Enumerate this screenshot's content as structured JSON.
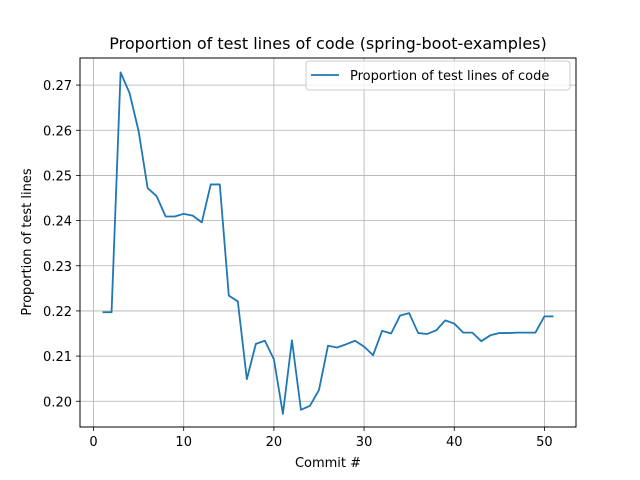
{
  "chart_data": {
    "type": "line",
    "title": "Proportion of test lines of code (spring-boot-examples)",
    "xlabel": "Commit #",
    "ylabel": "Proportion of test lines",
    "xlim": [
      -1.5,
      53.5
    ],
    "ylim": [
      0.1943,
      0.276
    ],
    "xticks": [
      0,
      10,
      20,
      30,
      40,
      50
    ],
    "yticks": [
      0.2,
      0.21,
      0.22,
      0.23,
      0.24,
      0.25,
      0.26,
      0.27
    ],
    "ytick_labels": [
      "0.20",
      "0.21",
      "0.22",
      "0.23",
      "0.24",
      "0.25",
      "0.26",
      "0.27"
    ],
    "grid": true,
    "legend_position": "top-right",
    "line_color": "#1f77b4",
    "series": [
      {
        "name": "Proportion of test lines of code",
        "x": [
          1,
          2,
          3,
          4,
          5,
          6,
          7,
          8,
          9,
          10,
          11,
          12,
          13,
          14,
          15,
          16,
          17,
          18,
          19,
          20,
          21,
          22,
          23,
          24,
          25,
          26,
          27,
          28,
          29,
          30,
          31,
          32,
          33,
          34,
          35,
          36,
          37,
          38,
          39,
          40,
          41,
          42,
          43,
          44,
          45,
          46,
          47,
          48,
          49,
          50,
          51
        ],
        "values": [
          0.2197,
          0.2197,
          0.2728,
          0.2682,
          0.2598,
          0.2472,
          0.2454,
          0.2409,
          0.2409,
          0.2415,
          0.2411,
          0.2396,
          0.248,
          0.248,
          0.2234,
          0.2221,
          0.2049,
          0.2127,
          0.2134,
          0.2093,
          0.1972,
          0.2135,
          0.1981,
          0.199,
          0.2025,
          0.2123,
          0.2119,
          0.2126,
          0.2134,
          0.2121,
          0.2102,
          0.2156,
          0.215,
          0.219,
          0.2195,
          0.2151,
          0.2149,
          0.2157,
          0.2179,
          0.2172,
          0.2152,
          0.2152,
          0.2133,
          0.2146,
          0.2151,
          0.2151,
          0.2152,
          0.2152,
          0.2152,
          0.2188,
          0.2188
        ]
      }
    ]
  }
}
